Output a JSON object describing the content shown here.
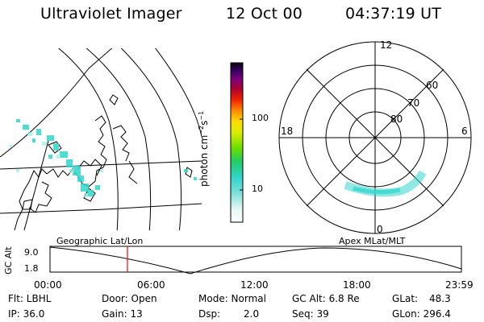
{
  "header": {
    "title": "Ultraviolet Imager",
    "date": "12 Oct 00",
    "time": "04:37:19 UT"
  },
  "colorbar": {
    "unit": "photon cm",
    "unit_sup1": "−2",
    "unit_mid": "s",
    "unit_sup2": "−1",
    "ticks": [
      "100",
      "10"
    ]
  },
  "polar": {
    "mlt_labels": {
      "top": "12",
      "left": "18",
      "right": "6",
      "bottom": "0"
    },
    "lat_labels": [
      "60",
      "70",
      "80"
    ]
  },
  "strip": {
    "left_label": "Geographic Lat/Lon",
    "right_label": "Apex MLat/MLT",
    "axis_label": "GC Alt",
    "y_ticks": [
      "9.0",
      "1.8"
    ],
    "x_ticks": [
      "00:00",
      "06:00",
      "12:00",
      "18:00",
      "23:59"
    ]
  },
  "footer": {
    "flt": "Flt: LBHL",
    "ip": "IP: 36.0",
    "door": "Door: Open",
    "gain": "Gain: 13",
    "mode": "Mode: Normal",
    "dsp_label": "Dsp:",
    "dsp_value": "2.0",
    "gc_alt": "GC Alt: 6.8 Re",
    "seq": "Seq: 39",
    "glat_label": "GLat:",
    "glat_value": "48.3",
    "glon": "GLon: 296.4"
  },
  "colors": {
    "aurora": "#33d6cc",
    "marker": "#ff0000",
    "line": "#000000"
  }
}
